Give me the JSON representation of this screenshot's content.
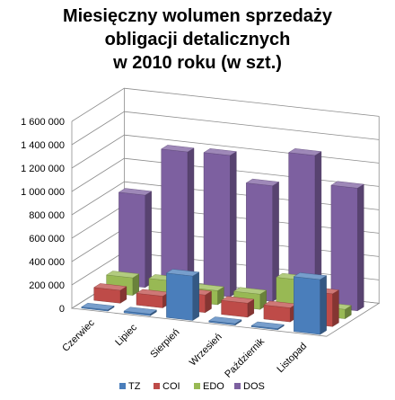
{
  "chart_data": {
    "type": "bar",
    "title_lines": [
      "Miesięczny wolumen sprzedaży",
      "obligacji detalicznych",
      "w 2010 roku (w szt.)"
    ],
    "categories": [
      "Czerwiec",
      "Lipiec",
      "Sierpień",
      "Wrzesień",
      "Październik",
      "Listopad"
    ],
    "series": [
      {
        "name": "TZ",
        "color": "#4a7ebb",
        "values": [
          10000,
          15000,
          380000,
          12000,
          10000,
          470000
        ]
      },
      {
        "name": "COI",
        "color": "#be4b48",
        "values": [
          110000,
          100000,
          150000,
          120000,
          120000,
          280000
        ]
      },
      {
        "name": "EDO",
        "color": "#98b954",
        "values": [
          150000,
          160000,
          120000,
          130000,
          290000,
          80000
        ]
      },
      {
        "name": "DOS",
        "color": "#7d60a0",
        "values": [
          790000,
          1200000,
          1210000,
          990000,
          1290000,
          1050000
        ]
      }
    ],
    "y_ticks": [
      "0",
      "200 000",
      "400 000",
      "600 000",
      "800 000",
      "1 000 000",
      "1 200 000",
      "1 400 000",
      "1 600 000"
    ],
    "ylim": [
      0,
      1600000
    ],
    "legend_position": "bottom",
    "grid": true
  }
}
